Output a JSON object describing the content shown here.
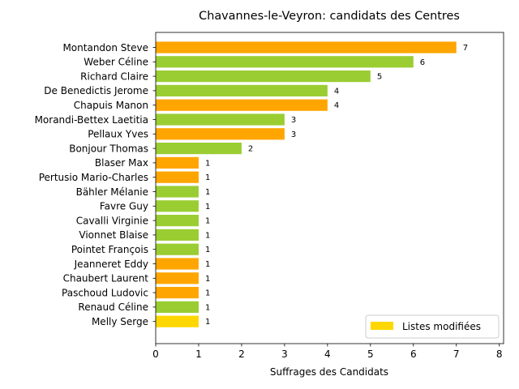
{
  "chart_data": {
    "type": "bar",
    "orientation": "horizontal",
    "title": "Chavannes-le-Veyron: candidats des Centres",
    "xlabel": "Suffrages des Candidats",
    "ylabel": "",
    "xlim": [
      0,
      8.1
    ],
    "xticks": [
      "0",
      "1",
      "2",
      "3",
      "4",
      "5",
      "6",
      "7",
      "8"
    ],
    "categories": [
      "Montandon Steve",
      "Weber Céline",
      "Richard Claire",
      "De Benedictis Jerome",
      "Chapuis Manon",
      "Morandi-Bettex Laetitia",
      "Pellaux Yves",
      "Bonjour Thomas",
      "Blaser Max",
      "Pertusio Mario-Charles",
      "Bähler Mélanie",
      "Favre Guy",
      "Cavalli Virginie",
      "Vionnet Blaise",
      "Pointet François",
      "Jeanneret Eddy",
      "Chaubert Laurent",
      "Paschoud Ludovic",
      "Renaud Céline",
      "Melly Serge"
    ],
    "values": [
      7,
      6,
      5,
      4,
      4,
      3,
      3,
      2,
      1,
      1,
      1,
      1,
      1,
      1,
      1,
      1,
      1,
      1,
      1,
      1
    ],
    "bar_colors": [
      "#ffa500",
      "#9acd32",
      "#9acd32",
      "#9acd32",
      "#ffa500",
      "#9acd32",
      "#ffa500",
      "#9acd32",
      "#ffa500",
      "#ffa500",
      "#9acd32",
      "#9acd32",
      "#9acd32",
      "#9acd32",
      "#9acd32",
      "#ffa500",
      "#ffa500",
      "#ffa500",
      "#9acd32",
      "#ffd700"
    ],
    "legend": {
      "entries": [
        {
          "label": "Listes modifiées",
          "color": "#ffd700"
        }
      ],
      "placement": "lower-right"
    },
    "grid": false
  }
}
